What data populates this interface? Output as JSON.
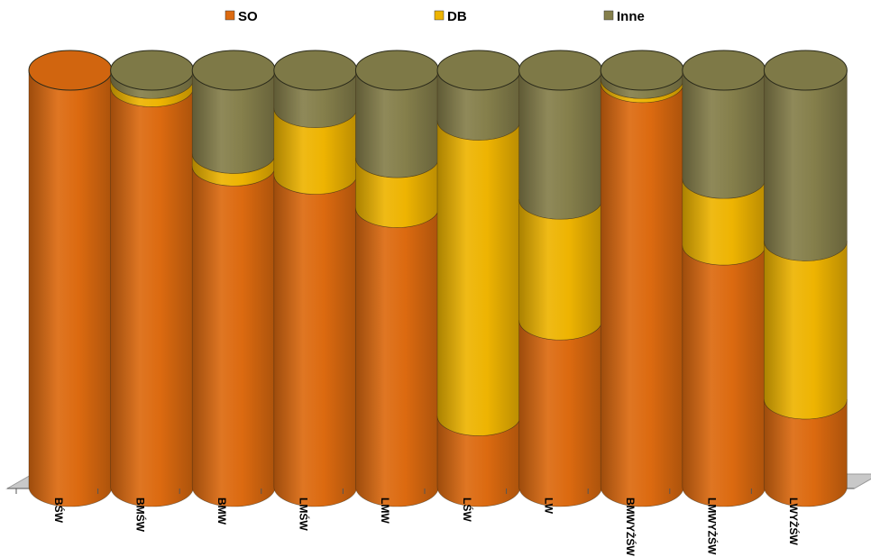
{
  "chart_data": {
    "type": "bar",
    "stacked": true,
    "style": "3d-cylinder, 100% stacked",
    "categories": [
      "BŚW",
      "BMŚW",
      "BMW",
      "LMŚW",
      "LMW",
      "LŚW",
      "LW",
      "BMWYŻŚW",
      "LMWYŻŚW",
      "LWYŻŚW"
    ],
    "series": [
      {
        "name": "SO",
        "color": "#dc6a10",
        "values": [
          100,
          96,
          77,
          75,
          67,
          17,
          40,
          97,
          58,
          21
        ]
      },
      {
        "name": "DB",
        "color": "#eeb402",
        "values": [
          0,
          2,
          3,
          16,
          12,
          71,
          29,
          1,
          16,
          38
        ]
      },
      {
        "name": "Inne",
        "color": "#857f4b",
        "values": [
          0,
          2,
          20,
          9,
          21,
          12,
          31,
          2,
          26,
          41
        ]
      }
    ],
    "ylim": [
      0,
      100
    ],
    "grid": false,
    "legend_position": "top"
  }
}
